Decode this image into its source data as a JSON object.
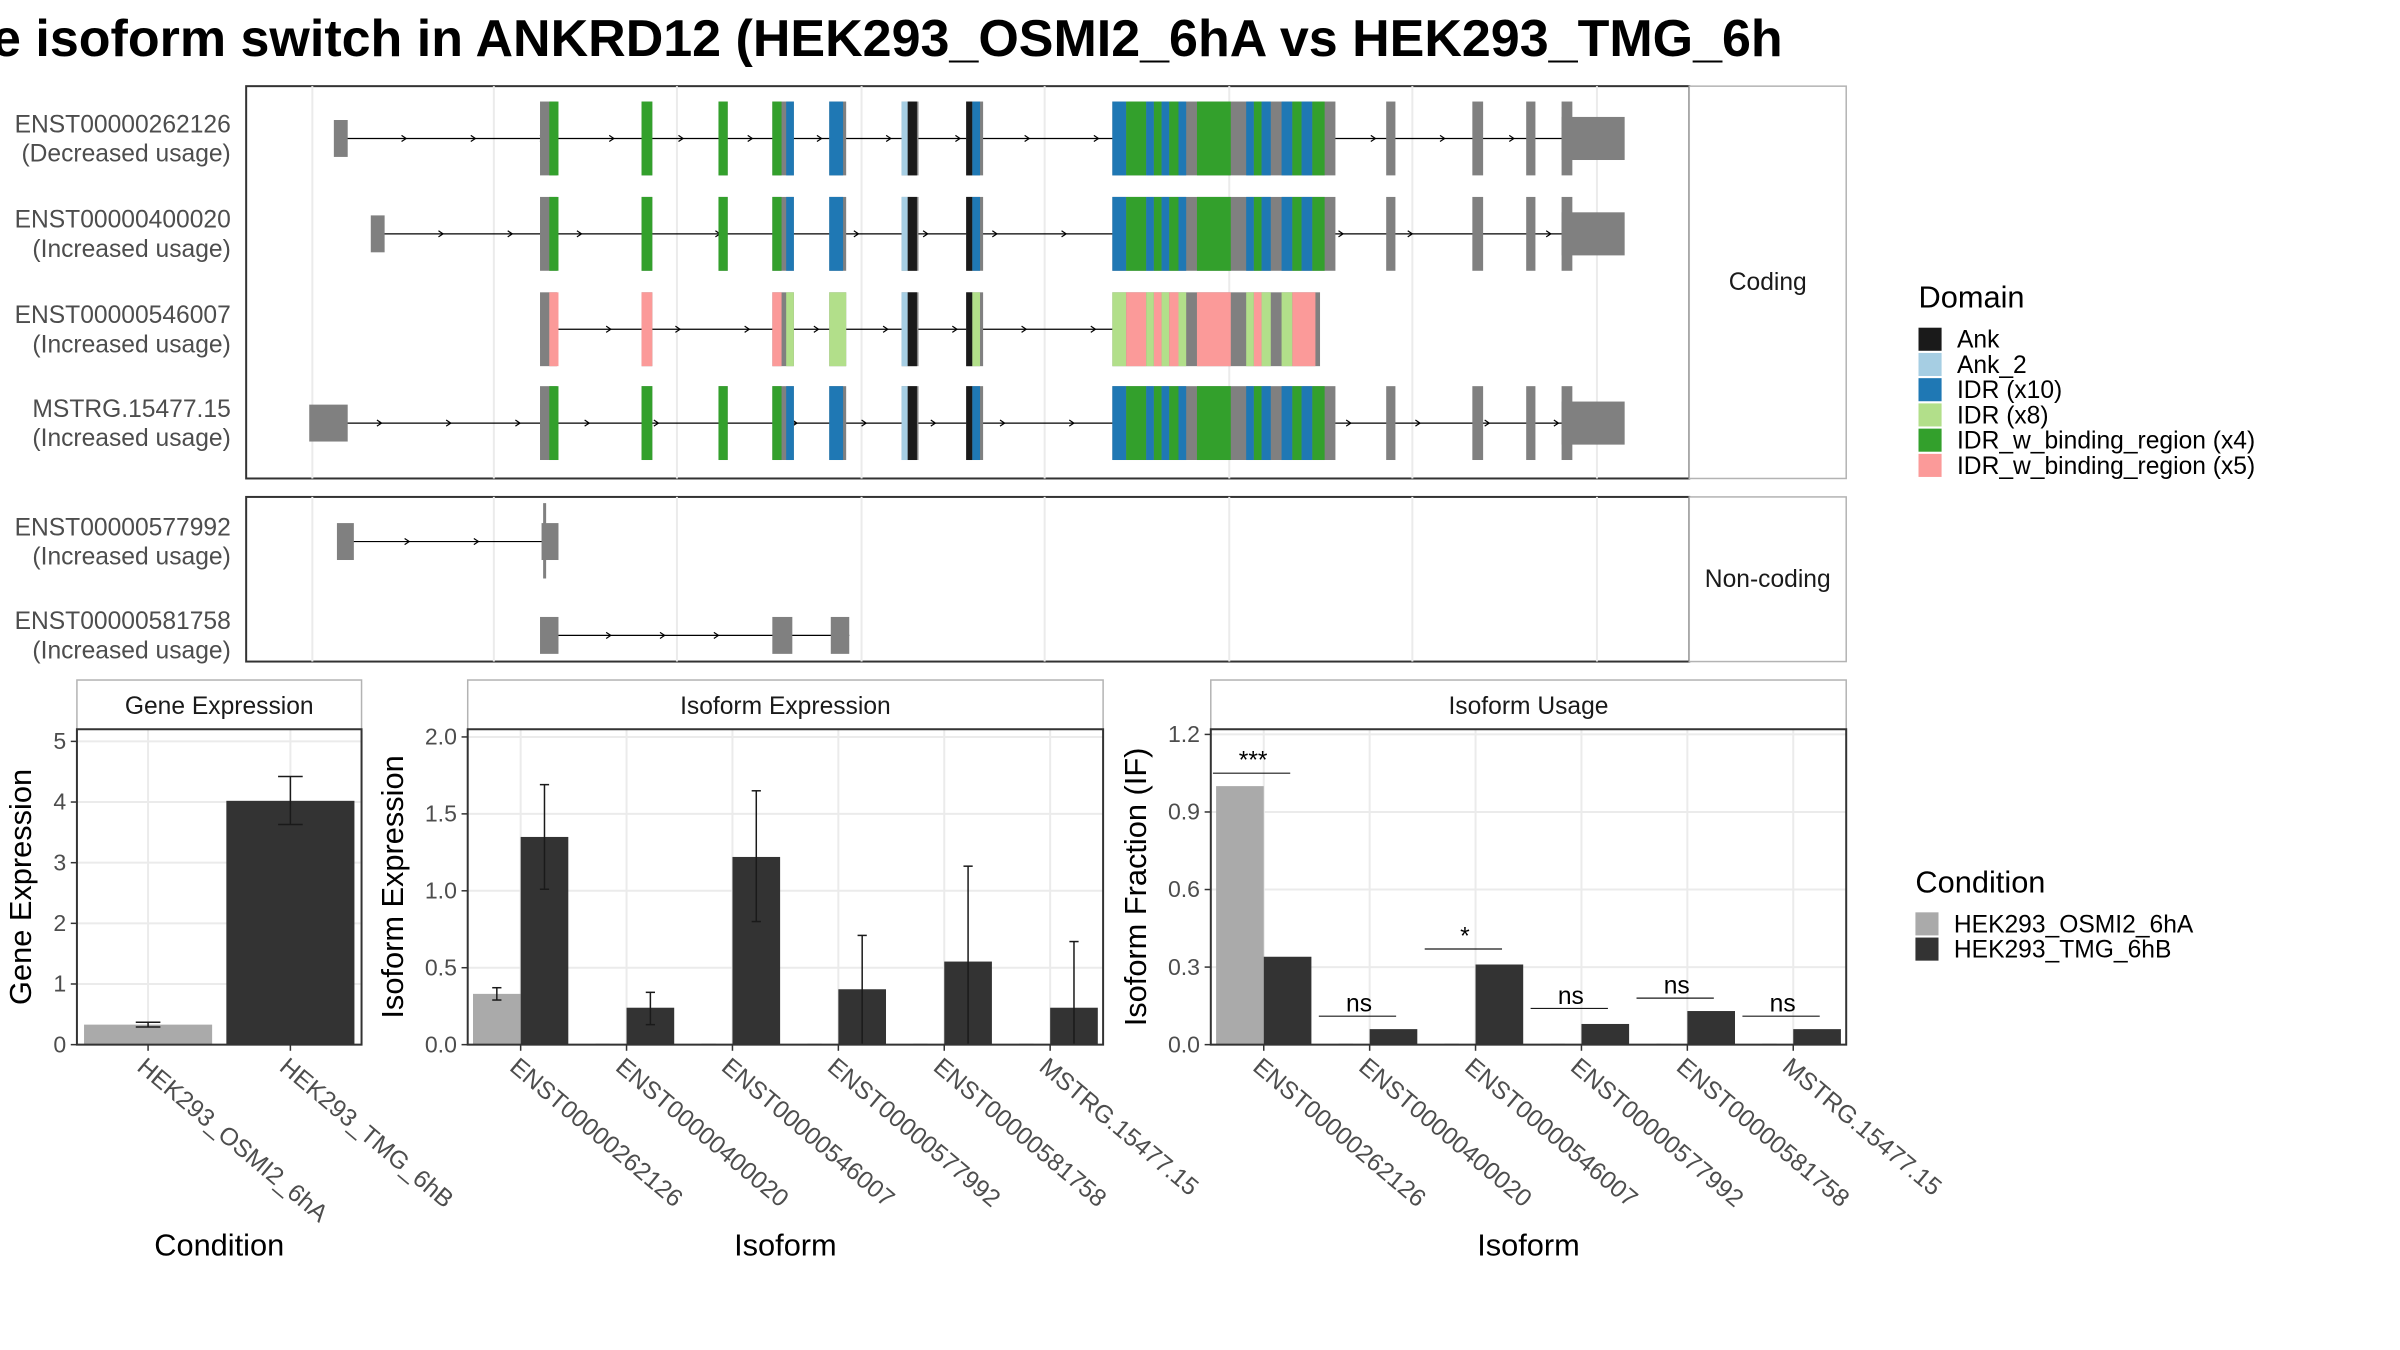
{
  "page": {
    "title": "e isoform switch in ANKRD12 (HEK293_OSMI2_6hA vs HEK293_TMG_6h"
  },
  "colors": {
    "exon_gray": "#808080",
    "panel_border": "#333333",
    "strip_border": "#b3b3b3",
    "grid": "#ebebeb",
    "Ank": "#1a1a1a",
    "Ank_2": "#a6cee3",
    "IDR_x10": "#1f78b4",
    "IDR_x8": "#b2df8a",
    "IDR_w_binding_region_x4": "#33a02c",
    "IDR_w_binding_region_x5": "#fb9a99",
    "HEK293_OSMI2_6hA": "#aaaaaa",
    "HEK293_TMG_6hB": "#333333"
  },
  "structure": {
    "strip_coding": "Coding",
    "strip_noncoding": "Non-coding",
    "coding": [
      {
        "id": "ENST00000262126",
        "usage": "(Decreased usage)",
        "start": 219,
        "end": 1055,
        "domain_set": "A"
      },
      {
        "id": "ENST00000400020",
        "usage": "(Increased usage)",
        "start": 243,
        "end": 1055,
        "domain_set": "A"
      },
      {
        "id": "ENST00000546007",
        "usage": "(Increased usage)",
        "start": 352,
        "end": 857,
        "domain_set": "B"
      },
      {
        "id": "MSTRG.15477.15",
        "usage": "(Increased usage)",
        "start": 203,
        "end": 1055,
        "domain_set": "A"
      }
    ],
    "noncoding": [
      {
        "id": "ENST00000577992",
        "usage": "(Increased usage)",
        "start": 221,
        "end": 362
      },
      {
        "id": "ENST00000581758",
        "usage": "(Increased usage)",
        "start": 352,
        "end": 552
      }
    ]
  },
  "legend_domain": {
    "title": "Domain",
    "items": [
      {
        "label": "Ank",
        "color": "#1a1a1a"
      },
      {
        "label": "Ank_2",
        "color": "#a6cee3"
      },
      {
        "label": "IDR (x10)",
        "color": "#1f78b4"
      },
      {
        "label": "IDR (x8)",
        "color": "#b2df8a"
      },
      {
        "label": "IDR_w_binding_region (x4)",
        "color": "#33a02c"
      },
      {
        "label": "IDR_w_binding_region (x5)",
        "color": "#fb9a99"
      }
    ]
  },
  "legend_condition": {
    "title": "Condition",
    "items": [
      {
        "label": "HEK293_OSMI2_6hA",
        "color": "#aaaaaa"
      },
      {
        "label": "HEK293_TMG_6hB",
        "color": "#333333"
      }
    ]
  },
  "chart_data": [
    {
      "type": "bar",
      "title": "Gene Expression",
      "xlabel": "Condition",
      "ylabel": "Gene Expression",
      "ylim": [
        0,
        5.2
      ],
      "yticks": [
        0,
        1,
        2,
        3,
        4,
        5
      ],
      "categories": [
        "HEK293_OSMI2_6hA",
        "HEK293_TMG_6hB"
      ],
      "values": [
        0.33,
        4.02
      ],
      "errors": [
        [
          0.29,
          0.37
        ],
        [
          3.63,
          4.42
        ]
      ]
    },
    {
      "type": "bar",
      "title": "Isoform Expression",
      "xlabel": "Isoform",
      "ylabel": "Isoform Expression",
      "ylim": [
        0,
        2.05
      ],
      "yticks": [
        0.0,
        0.5,
        1.0,
        1.5,
        2.0
      ],
      "categories": [
        "ENST00000262126",
        "ENST00000400020",
        "ENST00000546007",
        "ENST00000577992",
        "ENST00000581758",
        "MSTRG.15477.15"
      ],
      "series": [
        {
          "name": "HEK293_OSMI2_6hA",
          "values": [
            0.33,
            0.0,
            0.0,
            0.0,
            0.0,
            0.0
          ],
          "errors": [
            [
              0.29,
              0.37
            ],
            null,
            null,
            null,
            null,
            null
          ]
        },
        {
          "name": "HEK293_TMG_6hB",
          "values": [
            1.35,
            0.24,
            1.22,
            0.36,
            0.54,
            0.24
          ],
          "errors": [
            [
              1.01,
              1.69
            ],
            [
              0.13,
              0.34
            ],
            [
              0.8,
              1.65
            ],
            [
              0.0,
              0.71
            ],
            [
              0.0,
              1.16
            ],
            [
              0.0,
              0.67
            ]
          ]
        }
      ]
    },
    {
      "type": "bar",
      "title": "Isoform Usage",
      "xlabel": "Isoform",
      "ylabel": "Isoform Fraction (IF)",
      "ylim": [
        0,
        1.22
      ],
      "yticks": [
        0.0,
        0.3,
        0.6,
        0.9,
        1.2
      ],
      "categories": [
        "ENST00000262126",
        "ENST00000400020",
        "ENST00000546007",
        "ENST00000577992",
        "ENST00000581758",
        "MSTRG.15477.15"
      ],
      "series": [
        {
          "name": "HEK293_OSMI2_6hA",
          "values": [
            1.0,
            0.0,
            0.0,
            0.0,
            0.0,
            0.0
          ]
        },
        {
          "name": "HEK293_TMG_6hB",
          "values": [
            0.34,
            0.06,
            0.31,
            0.08,
            0.13,
            0.06
          ]
        }
      ],
      "significance": [
        "***",
        "ns",
        "*",
        "ns",
        "ns",
        "ns"
      ],
      "significance_levels": [
        1.05,
        0.11,
        0.37,
        0.14,
        0.18,
        0.11
      ]
    }
  ]
}
